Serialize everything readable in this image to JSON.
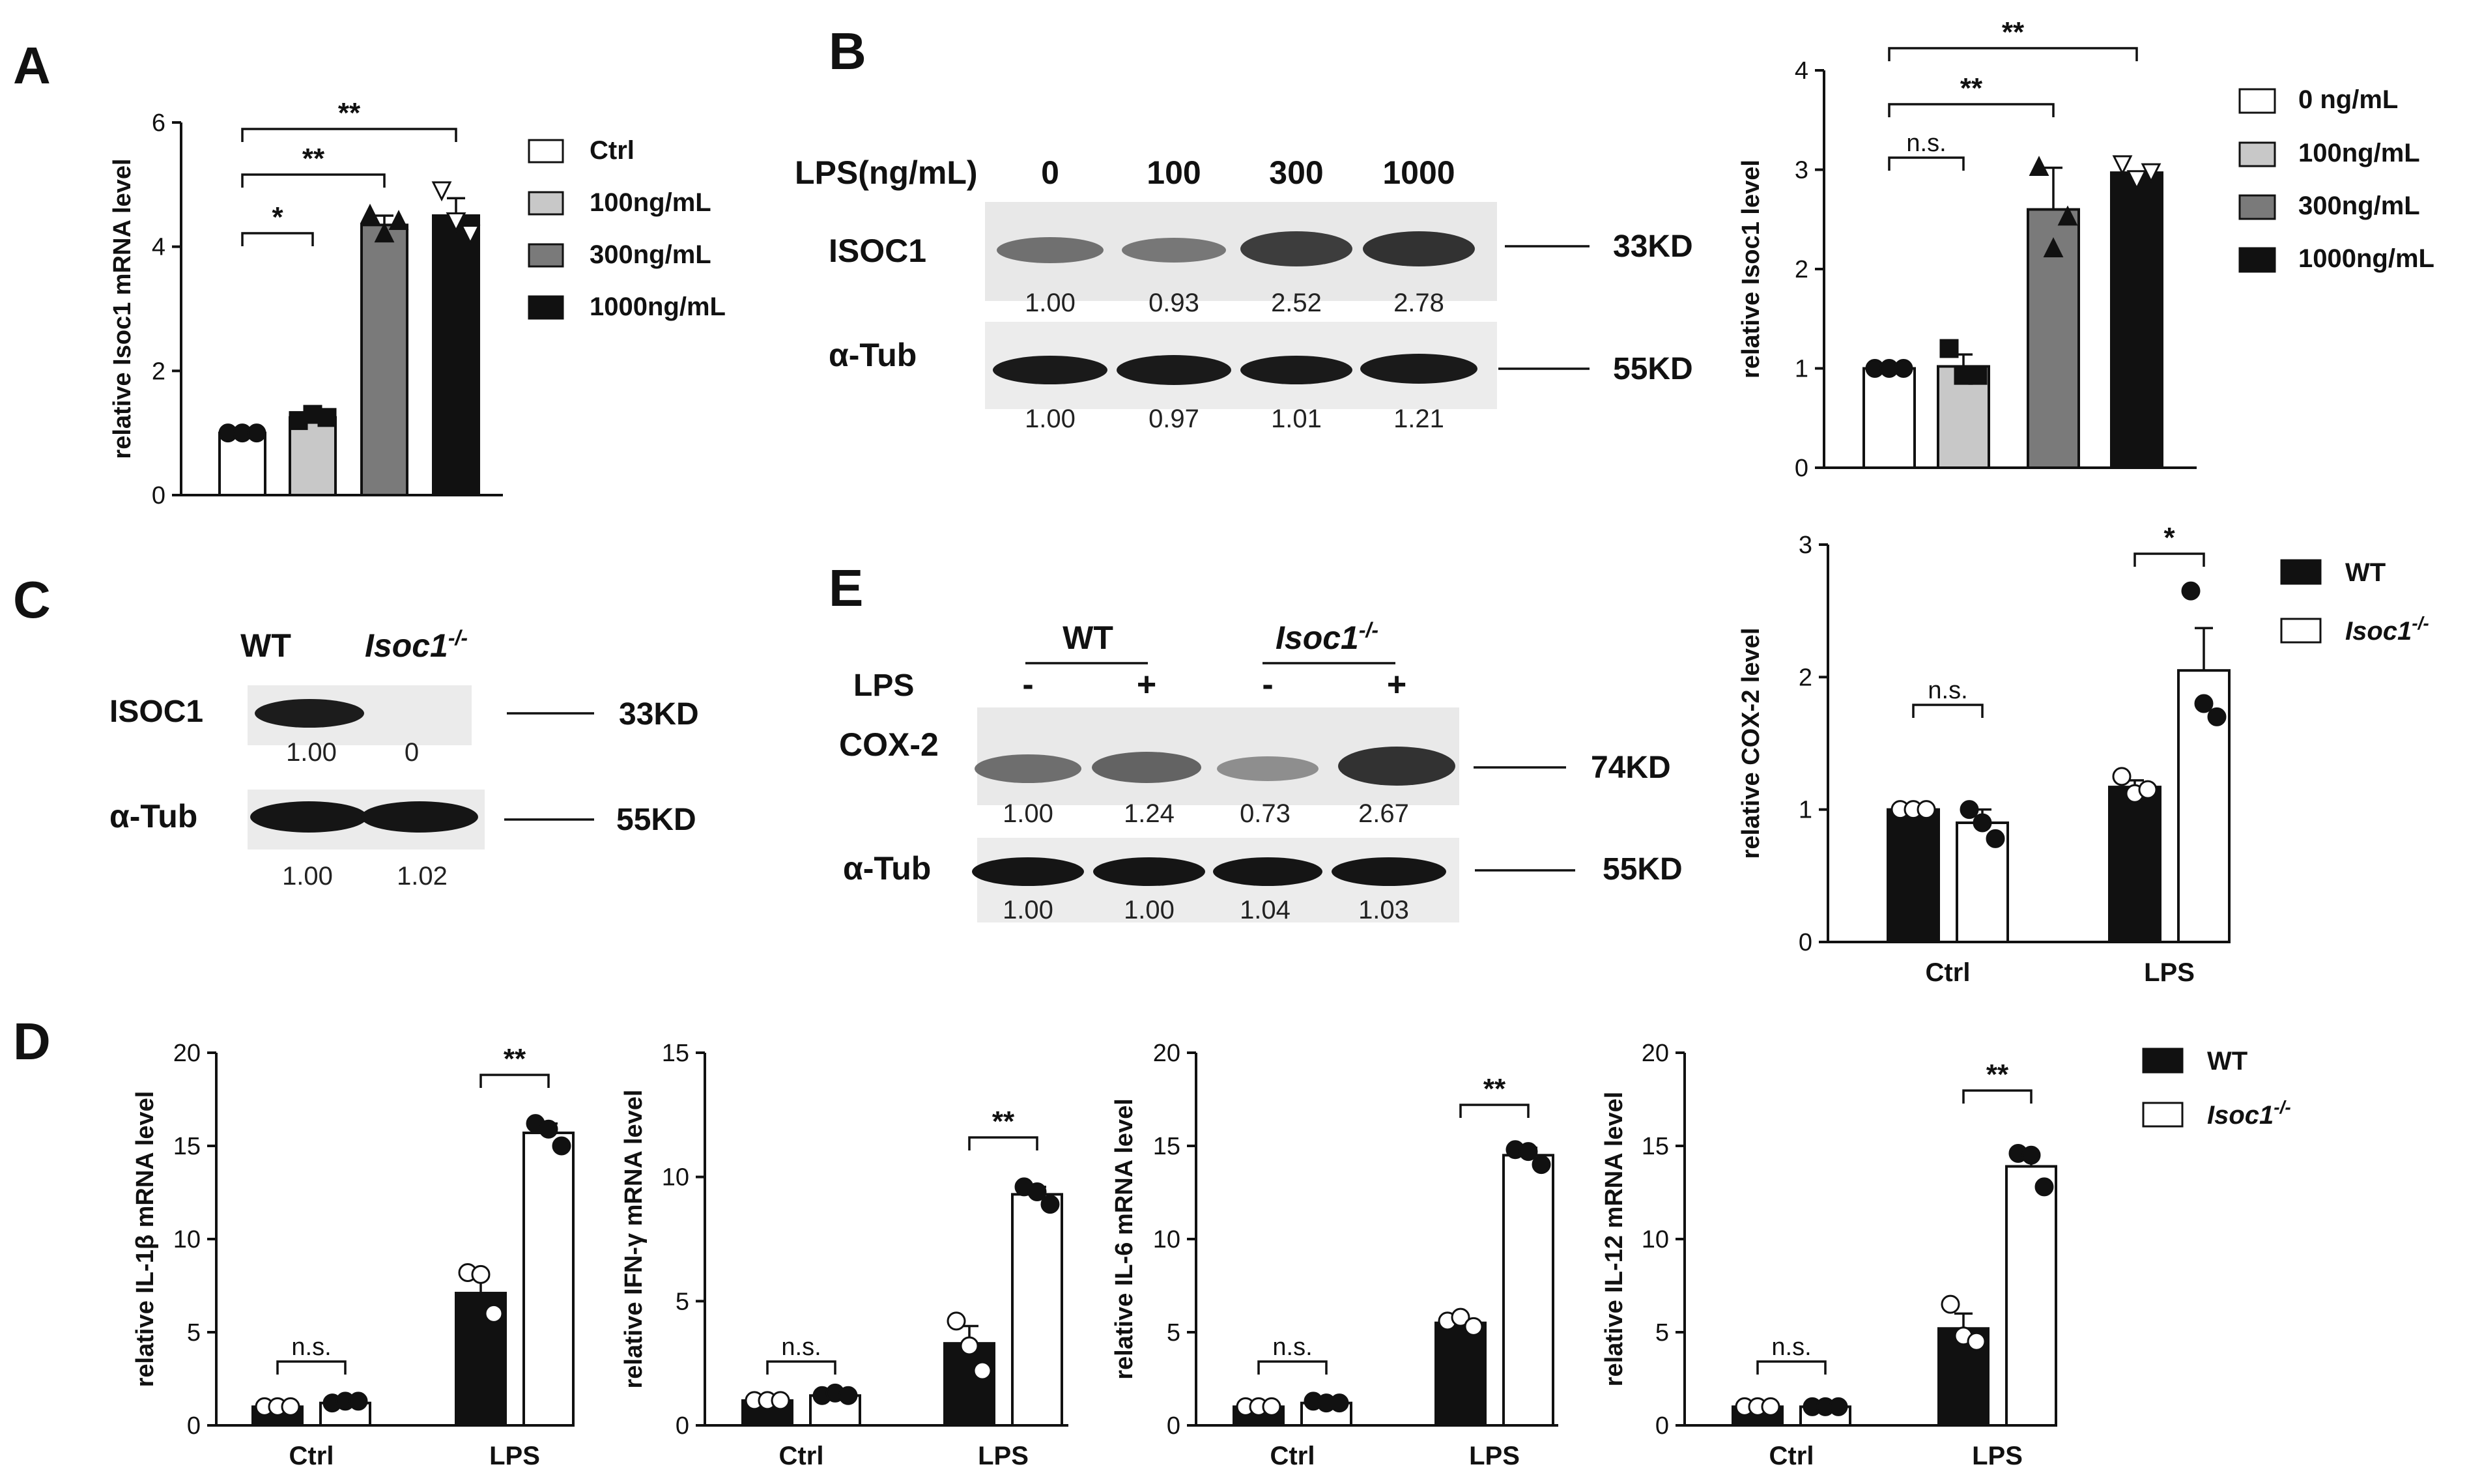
{
  "panels": {
    "A": "A",
    "B": "B",
    "C": "C",
    "D": "D",
    "E": "E"
  },
  "colors": {
    "white": "#ffffff",
    "light_gray": "#c8c8c8",
    "dark_gray": "#7a7a7a",
    "black": "#111111",
    "blot_bg": "#e9e9e9"
  },
  "legendA": [
    "Ctrl",
    "100ng/mL",
    "300ng/mL",
    "1000ng/mL"
  ],
  "legendB": [
    "0 ng/mL",
    "100ng/mL",
    "300ng/mL",
    "1000ng/mL"
  ],
  "legendWT": {
    "wt": "WT",
    "ko": "Isoc1",
    "ko_sup": "-/-"
  },
  "blotB": {
    "header": "LPS(ng/mL)",
    "lanes": [
      "0",
      "100",
      "300",
      "1000"
    ],
    "rows": [
      {
        "label": "ISOC1",
        "kd": "33KD",
        "values": [
          "1.00",
          "0.93",
          "2.52",
          "2.78"
        ]
      },
      {
        "label": "α-Tub",
        "kd": "55KD",
        "values": [
          "1.00",
          "0.97",
          "1.01",
          "1.21"
        ]
      }
    ]
  },
  "blotC": {
    "lanes": [
      "WT",
      "Isoc1"
    ],
    "lane_sup": "-/-",
    "rows": [
      {
        "label": "ISOC1",
        "kd": "33KD",
        "values": [
          "1.00",
          "0"
        ]
      },
      {
        "label": "α-Tub",
        "kd": "55KD",
        "values": [
          "1.00",
          "1.02"
        ]
      }
    ]
  },
  "blotE": {
    "groups": [
      "WT",
      "Isoc1"
    ],
    "group_sup": "-/-",
    "lps_label": "LPS",
    "lps": [
      "-",
      "+",
      "-",
      "+"
    ],
    "rows": [
      {
        "label": "COX-2",
        "kd": "74KD",
        "values": [
          "1.00",
          "1.24",
          "0.73",
          "2.67"
        ]
      },
      {
        "label": "α-Tub",
        "kd": "55KD",
        "values": [
          "1.00",
          "1.00",
          "1.04",
          "1.03"
        ]
      }
    ]
  },
  "chart_data": [
    {
      "id": "A",
      "type": "bar",
      "ylabel": "relative Isoc1 mRNA level",
      "ylim": [
        0,
        6
      ],
      "yticks": [
        "0",
        "2",
        "4",
        "6"
      ],
      "categories": [
        "Ctrl",
        "100ng/mL",
        "300ng/mL",
        "1000ng/mL"
      ],
      "values": [
        1.0,
        1.25,
        4.35,
        4.5
      ],
      "errors": [
        0.02,
        0.08,
        0.15,
        0.28
      ],
      "points": [
        [
          1.0,
          1.0,
          1.0
        ],
        [
          1.2,
          1.3,
          1.25
        ],
        [
          4.5,
          4.2,
          4.4
        ],
        [
          4.9,
          4.4,
          4.2
        ]
      ],
      "markers": [
        "circle",
        "square",
        "triangle",
        "triangle-down"
      ],
      "significance": [
        {
          "from": 0,
          "to": 1,
          "label": "*"
        },
        {
          "from": 0,
          "to": 2,
          "label": "**"
        },
        {
          "from": 0,
          "to": 3,
          "label": "**"
        }
      ]
    },
    {
      "id": "B",
      "type": "bar",
      "ylabel": "relative Isoc1 level",
      "ylim": [
        0,
        4
      ],
      "yticks": [
        "0",
        "1",
        "2",
        "3",
        "4"
      ],
      "categories": [
        "0 ng/mL",
        "100ng/mL",
        "300ng/mL",
        "1000ng/mL"
      ],
      "values": [
        1.0,
        1.02,
        2.6,
        2.97
      ],
      "errors": [
        0.01,
        0.12,
        0.42,
        0.03
      ],
      "points": [
        [
          1.0,
          1.0,
          1.0
        ],
        [
          1.2,
          0.93,
          0.93
        ],
        [
          3.02,
          2.2,
          2.52
        ],
        [
          3.05,
          2.9,
          2.97
        ]
      ],
      "markers": [
        "circle",
        "square",
        "triangle",
        "triangle-down"
      ],
      "significance": [
        {
          "from": 0,
          "to": 1,
          "label": "n.s."
        },
        {
          "from": 0,
          "to": 2,
          "label": "**"
        },
        {
          "from": 0,
          "to": 3,
          "label": "**"
        }
      ]
    },
    {
      "id": "E",
      "type": "bar",
      "ylabel": "relative COX-2 level",
      "ylim": [
        0,
        3
      ],
      "yticks": [
        "0",
        "1",
        "2",
        "3"
      ],
      "categories": [
        "Ctrl",
        "LPS"
      ],
      "series": [
        {
          "name": "WT",
          "values": [
            1.0,
            1.17
          ],
          "errors": [
            0.01,
            0.05
          ],
          "points": [
            [
              1.0,
              1.0,
              1.0
            ],
            [
              1.25,
              1.12,
              1.15
            ]
          ]
        },
        {
          "name": "Isoc1-/-",
          "values": [
            0.9,
            2.05
          ],
          "errors": [
            0.1,
            0.32
          ],
          "points": [
            [
              1.0,
              0.9,
              0.78
            ],
            [
              2.65,
              1.8,
              1.7
            ]
          ]
        }
      ],
      "significance": [
        {
          "group": 0,
          "label": "n.s."
        },
        {
          "group": 1,
          "label": "*"
        }
      ]
    },
    {
      "id": "D1",
      "type": "bar",
      "ylabel": "relative IL-1β mRNA level",
      "ylim": [
        0,
        20
      ],
      "yticks": [
        "0",
        "5",
        "10",
        "15",
        "20"
      ],
      "categories": [
        "Ctrl",
        "LPS"
      ],
      "series": [
        {
          "name": "WT",
          "values": [
            1.0,
            7.1
          ],
          "errors": [
            0.02,
            0.9
          ],
          "points": [
            [
              1.0,
              1.0,
              1.0
            ],
            [
              8.2,
              8.1,
              6.0
            ]
          ]
        },
        {
          "name": "Isoc1-/-",
          "values": [
            1.2,
            15.7
          ],
          "errors": [
            0.1,
            0.5
          ],
          "points": [
            [
              1.2,
              1.3,
              1.3
            ],
            [
              16.2,
              15.9,
              15.0
            ]
          ]
        }
      ],
      "significance": [
        {
          "group": 0,
          "label": "n.s."
        },
        {
          "group": 1,
          "label": "**"
        }
      ]
    },
    {
      "id": "D2",
      "type": "bar",
      "ylabel": "relative IFN-γ mRNA level",
      "ylim": [
        0,
        15
      ],
      "yticks": [
        "0",
        "5",
        "10",
        "15"
      ],
      "categories": [
        "Ctrl",
        "LPS"
      ],
      "series": [
        {
          "name": "WT",
          "values": [
            1.0,
            3.3
          ],
          "errors": [
            0.02,
            0.7
          ],
          "points": [
            [
              1.0,
              1.0,
              1.0
            ],
            [
              4.2,
              3.2,
              2.2
            ]
          ]
        },
        {
          "name": "Isoc1-/-",
          "values": [
            1.2,
            9.3
          ],
          "errors": [
            0.1,
            0.3
          ],
          "points": [
            [
              1.2,
              1.3,
              1.2
            ],
            [
              9.6,
              9.4,
              8.9
            ]
          ]
        }
      ],
      "significance": [
        {
          "group": 0,
          "label": "n.s."
        },
        {
          "group": 1,
          "label": "**"
        }
      ]
    },
    {
      "id": "D3",
      "type": "bar",
      "ylabel": "relative IL-6 mRNA level",
      "ylim": [
        0,
        20
      ],
      "yticks": [
        "0",
        "5",
        "10",
        "15",
        "20"
      ],
      "categories": [
        "Ctrl",
        "LPS"
      ],
      "series": [
        {
          "name": "WT",
          "values": [
            1.0,
            5.5
          ],
          "errors": [
            0.02,
            0.3
          ],
          "points": [
            [
              1.0,
              1.0,
              1.0
            ],
            [
              5.6,
              5.8,
              5.3
            ]
          ]
        },
        {
          "name": "Isoc1-/-",
          "values": [
            1.2,
            14.5
          ],
          "errors": [
            0.1,
            0.4
          ],
          "points": [
            [
              1.3,
              1.2,
              1.2
            ],
            [
              14.8,
              14.7,
              14.0
            ]
          ]
        }
      ],
      "significance": [
        {
          "group": 0,
          "label": "n.s."
        },
        {
          "group": 1,
          "label": "**"
        }
      ]
    },
    {
      "id": "D4",
      "type": "bar",
      "ylabel": "relative IL-12 mRNA level",
      "ylim": [
        0,
        20
      ],
      "yticks": [
        "0",
        "5",
        "10",
        "15",
        "20"
      ],
      "categories": [
        "Ctrl",
        "LPS"
      ],
      "series": [
        {
          "name": "WT",
          "values": [
            1.0,
            5.2
          ],
          "errors": [
            0.02,
            0.8
          ],
          "points": [
            [
              1.0,
              1.0,
              1.0
            ],
            [
              6.5,
              4.8,
              4.5
            ]
          ]
        },
        {
          "name": "Isoc1-/-",
          "values": [
            1.0,
            13.9
          ],
          "errors": [
            0.05,
            0.7
          ],
          "points": [
            [
              1.0,
              1.0,
              1.0
            ],
            [
              14.6,
              14.5,
              12.8
            ]
          ]
        }
      ],
      "significance": [
        {
          "group": 0,
          "label": "n.s."
        },
        {
          "group": 1,
          "label": "**"
        }
      ]
    }
  ]
}
